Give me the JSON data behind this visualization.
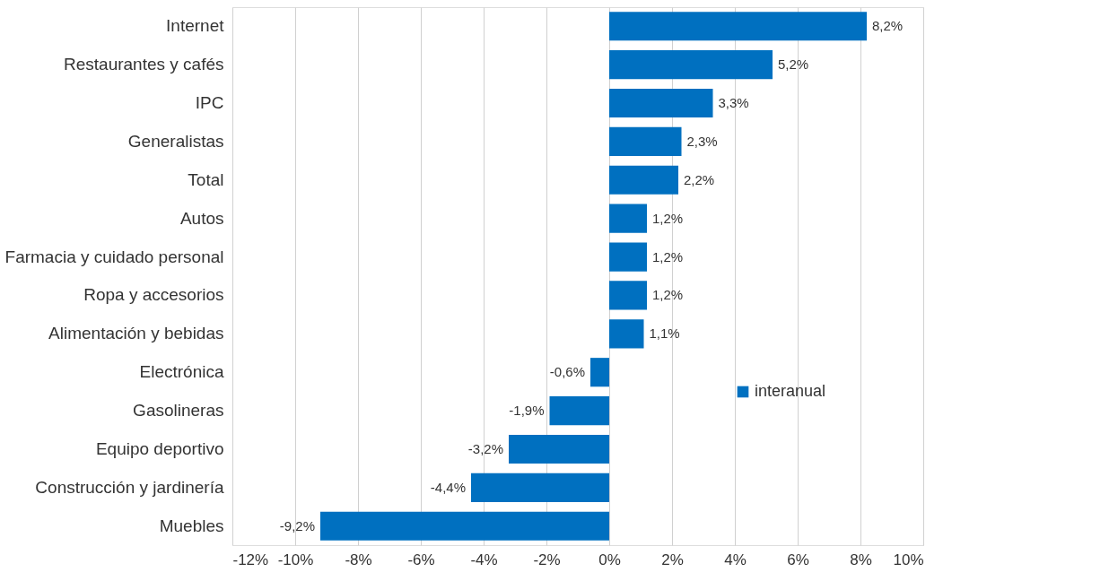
{
  "chart_data": {
    "type": "bar",
    "orientation": "horizontal",
    "categories": [
      "Internet",
      "Restaurantes y cafés",
      "IPC",
      "Generalistas",
      "Total",
      "Autos",
      "Farmacia y cuidado personal",
      "Ropa y accesorios",
      "Alimentación y bebidas",
      "Electrónica",
      "Gasolineras",
      "Equipo deportivo",
      "Construcción y jardinería",
      "Muebles"
    ],
    "series": [
      {
        "name": "interanual",
        "color": "#0070c0",
        "values": [
          8.2,
          5.2,
          3.3,
          2.3,
          2.2,
          1.2,
          1.2,
          1.2,
          1.1,
          -0.6,
          -1.9,
          -3.2,
          -4.4,
          -9.2
        ],
        "value_labels": [
          "8,2%",
          "5,2%",
          "3,3%",
          "2,3%",
          "2,2%",
          "1,2%",
          "1,2%",
          "1,2%",
          "1,1%",
          "-0,6%",
          "-1,9%",
          "-3,2%",
          "-4,4%",
          "-9,2%"
        ]
      }
    ],
    "xlim": [
      -12,
      10
    ],
    "xticks": [
      {
        "value": -12,
        "label": "-12%"
      },
      {
        "value": -10,
        "label": "-10%"
      },
      {
        "value": -8,
        "label": "-8%"
      },
      {
        "value": -6,
        "label": "-6%"
      },
      {
        "value": -4,
        "label": "-4%"
      },
      {
        "value": -2,
        "label": "-2%"
      },
      {
        "value": 0,
        "label": "0%"
      },
      {
        "value": 2,
        "label": "2%"
      },
      {
        "value": 4,
        "label": "4%"
      },
      {
        "value": 6,
        "label": "6%"
      },
      {
        "value": 8,
        "label": "8%"
      },
      {
        "value": 10,
        "label": "10%"
      }
    ],
    "grid": "x",
    "legend": "right"
  }
}
